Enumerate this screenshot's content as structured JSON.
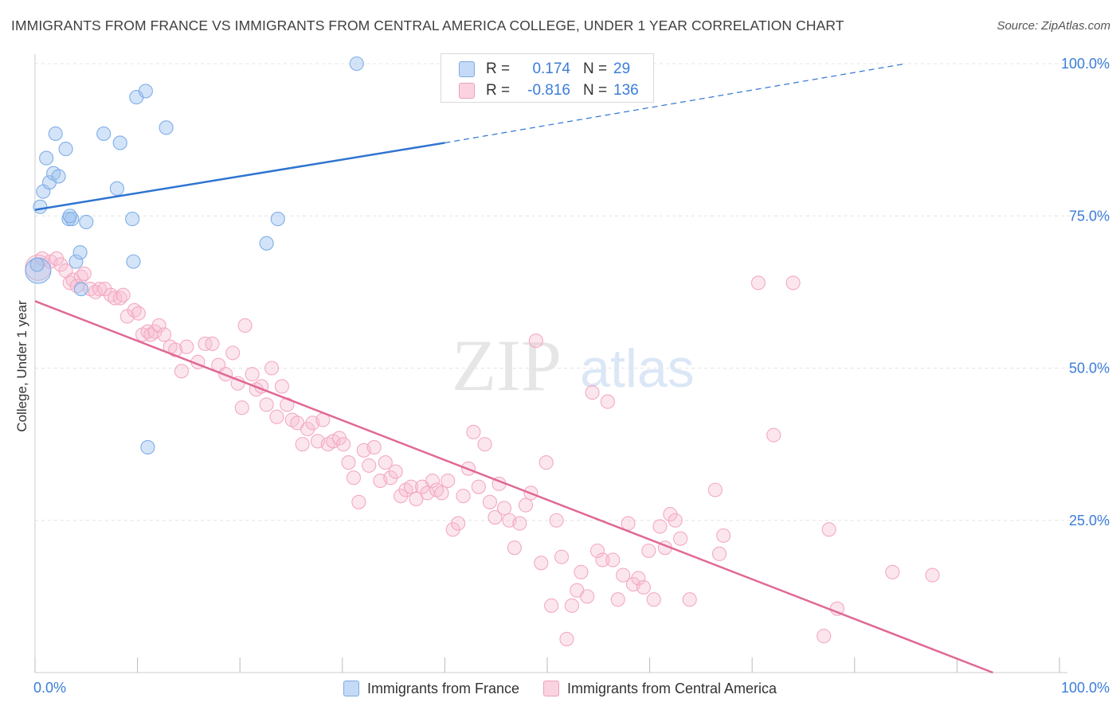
{
  "title": "IMMIGRANTS FROM FRANCE VS IMMIGRANTS FROM CENTRAL AMERICA COLLEGE, UNDER 1 YEAR CORRELATION CHART",
  "source": "Source: ZipAtlas.com",
  "watermark": {
    "zip": "ZIP",
    "atlas": "atlas"
  },
  "stats": [
    {
      "r_label": "R =",
      "r_value": "0.174",
      "n_label": "N =",
      "n_value": "29",
      "color": "#a9c8f0",
      "border": "#6ea0e0"
    },
    {
      "r_label": "R =",
      "r_value": "-0.816",
      "n_label": "N =",
      "n_value": "136",
      "color": "#f6c0d2",
      "border": "#e890b0"
    }
  ],
  "legend": [
    {
      "label": "Immigrants from France",
      "color": "#c5daf6",
      "border": "#7ea9e3"
    },
    {
      "label": "Immigrants from Central America",
      "color": "#fbd3e0",
      "border": "#eaa0bb"
    }
  ],
  "chart_data": {
    "type": "scatter",
    "xlabel": "",
    "ylabel": "College, Under 1 year",
    "xlim": [
      0,
      100
    ],
    "ylim": [
      0,
      100
    ],
    "x_tick_labels": [
      "0.0%",
      "100.0%"
    ],
    "y_tick_labels": [
      "25.0%",
      "50.0%",
      "75.0%",
      "100.0%"
    ],
    "y_ticks": [
      25,
      50,
      75,
      100
    ],
    "grid": true,
    "series": [
      {
        "name": "Immigrants from France",
        "color": "#7eaee8",
        "line_color": "#2f74d0",
        "trend": {
          "x0": 0,
          "y0": 76,
          "x1": 40,
          "y1": 87,
          "dash_to_x": 85,
          "dash_to_y": 100
        },
        "points": [
          [
            0.3,
            66
          ],
          [
            0.5,
            76.5
          ],
          [
            0.8,
            79
          ],
          [
            1.1,
            84.5
          ],
          [
            1.4,
            80.5
          ],
          [
            1.8,
            82
          ],
          [
            2.0,
            88.5
          ],
          [
            3.0,
            86
          ],
          [
            3.3,
            74.5
          ],
          [
            3.6,
            74.5
          ],
          [
            4.0,
            67.5
          ],
          [
            4.4,
            69
          ],
          [
            4.5,
            63
          ],
          [
            5.0,
            74
          ],
          [
            6.7,
            88.5
          ],
          [
            8.0,
            79.5
          ],
          [
            8.3,
            87
          ],
          [
            9.5,
            74.5
          ],
          [
            9.6,
            67.5
          ],
          [
            9.9,
            94.5
          ],
          [
            10.8,
            95.5
          ],
          [
            11.0,
            37
          ],
          [
            12.8,
            89.5
          ],
          [
            22.6,
            70.5
          ],
          [
            23.7,
            74.5
          ],
          [
            31.4,
            100
          ],
          [
            0.2,
            67
          ],
          [
            2.3,
            81.5
          ],
          [
            3.4,
            75
          ]
        ]
      },
      {
        "name": "Immigrants from Central America",
        "color": "#f3a9c2",
        "line_color": "#e06896",
        "trend": {
          "x0": 0,
          "y0": 61,
          "x1": 93.5,
          "y1": 0
        },
        "points": [
          [
            0.3,
            66.5
          ],
          [
            0.7,
            68
          ],
          [
            1.5,
            67.5
          ],
          [
            2.1,
            68
          ],
          [
            2.5,
            67
          ],
          [
            3.0,
            66
          ],
          [
            3.4,
            64
          ],
          [
            3.7,
            64.5
          ],
          [
            4.1,
            63.5
          ],
          [
            4.5,
            65
          ],
          [
            4.8,
            65.5
          ],
          [
            5.4,
            63
          ],
          [
            5.9,
            62.5
          ],
          [
            6.3,
            63
          ],
          [
            6.8,
            63
          ],
          [
            7.4,
            62
          ],
          [
            7.8,
            61.5
          ],
          [
            8.3,
            61.5
          ],
          [
            8.6,
            62
          ],
          [
            9.0,
            58.5
          ],
          [
            9.7,
            59.5
          ],
          [
            10.1,
            59
          ],
          [
            10.5,
            55.5
          ],
          [
            11.0,
            56
          ],
          [
            11.3,
            55.5
          ],
          [
            11.7,
            56
          ],
          [
            12.1,
            57
          ],
          [
            12.6,
            55.5
          ],
          [
            13.2,
            53.5
          ],
          [
            13.7,
            53
          ],
          [
            14.3,
            49.5
          ],
          [
            14.8,
            53.5
          ],
          [
            15.9,
            51
          ],
          [
            16.6,
            54
          ],
          [
            17.3,
            54
          ],
          [
            17.9,
            50.5
          ],
          [
            18.6,
            49
          ],
          [
            19.3,
            52.5
          ],
          [
            19.8,
            47.5
          ],
          [
            20.2,
            43.5
          ],
          [
            20.5,
            57
          ],
          [
            21.2,
            49
          ],
          [
            21.6,
            46.5
          ],
          [
            22.1,
            47
          ],
          [
            22.6,
            44
          ],
          [
            23.1,
            50
          ],
          [
            23.6,
            42
          ],
          [
            24.1,
            47
          ],
          [
            24.6,
            44
          ],
          [
            25.1,
            41.5
          ],
          [
            25.6,
            41
          ],
          [
            26.1,
            37.5
          ],
          [
            26.6,
            40
          ],
          [
            27.1,
            41
          ],
          [
            27.6,
            38
          ],
          [
            28.1,
            41.5
          ],
          [
            28.6,
            37.5
          ],
          [
            29.1,
            38
          ],
          [
            29.7,
            38.5
          ],
          [
            30.1,
            37.5
          ],
          [
            30.6,
            34.5
          ],
          [
            31.1,
            32
          ],
          [
            31.6,
            28
          ],
          [
            32.1,
            36.5
          ],
          [
            32.6,
            34
          ],
          [
            33.1,
            37
          ],
          [
            33.7,
            31.5
          ],
          [
            34.2,
            34.5
          ],
          [
            34.7,
            32
          ],
          [
            35.2,
            33
          ],
          [
            35.7,
            29
          ],
          [
            36.2,
            30
          ],
          [
            36.7,
            30.5
          ],
          [
            37.2,
            28.5
          ],
          [
            37.8,
            30.5
          ],
          [
            38.3,
            29.5
          ],
          [
            38.8,
            31.5
          ],
          [
            39.2,
            30
          ],
          [
            39.7,
            29.5
          ],
          [
            40.3,
            31.5
          ],
          [
            40.8,
            23.5
          ],
          [
            41.3,
            24.5
          ],
          [
            41.8,
            29
          ],
          [
            42.3,
            33.5
          ],
          [
            42.8,
            39.5
          ],
          [
            43.3,
            30.5
          ],
          [
            43.9,
            37.5
          ],
          [
            44.4,
            28
          ],
          [
            44.9,
            25.5
          ],
          [
            45.3,
            31
          ],
          [
            45.8,
            27
          ],
          [
            46.3,
            25
          ],
          [
            46.8,
            20.5
          ],
          [
            47.3,
            24.5
          ],
          [
            47.9,
            27.5
          ],
          [
            48.4,
            29.5
          ],
          [
            48.9,
            54.5
          ],
          [
            49.4,
            18
          ],
          [
            49.9,
            34.5
          ],
          [
            50.4,
            11
          ],
          [
            50.9,
            25
          ],
          [
            51.4,
            19
          ],
          [
            51.9,
            5.5
          ],
          [
            52.4,
            11
          ],
          [
            52.9,
            13.5
          ],
          [
            53.3,
            16.5
          ],
          [
            53.9,
            12.5
          ],
          [
            54.4,
            46
          ],
          [
            54.9,
            20
          ],
          [
            55.4,
            18.5
          ],
          [
            55.9,
            44.5
          ],
          [
            56.4,
            18.5
          ],
          [
            56.9,
            12
          ],
          [
            57.4,
            16
          ],
          [
            57.9,
            24.5
          ],
          [
            58.4,
            14.5
          ],
          [
            58.9,
            15.5
          ],
          [
            59.4,
            14
          ],
          [
            59.9,
            20
          ],
          [
            60.4,
            12
          ],
          [
            61.0,
            24
          ],
          [
            61.5,
            20.5
          ],
          [
            62.0,
            26
          ],
          [
            62.5,
            25
          ],
          [
            63.0,
            22
          ],
          [
            63.9,
            12
          ],
          [
            66.4,
            30
          ],
          [
            66.8,
            19.5
          ],
          [
            67.2,
            22.5
          ],
          [
            70.6,
            64
          ],
          [
            72.1,
            39
          ],
          [
            74.0,
            64
          ],
          [
            77.0,
            6
          ],
          [
            77.5,
            23.5
          ],
          [
            78.3,
            10.5
          ],
          [
            83.7,
            16.5
          ],
          [
            87.6,
            16
          ]
        ]
      }
    ]
  }
}
